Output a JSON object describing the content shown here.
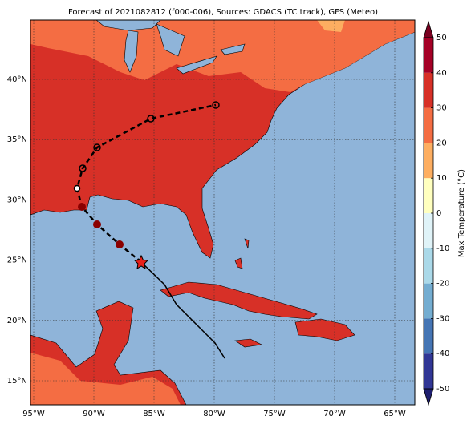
{
  "title": "Forecast of 2021082812 (f000-006), Sources: GDACS (TC track), GFS (Meteo)",
  "map": {
    "lon_labels": [
      "95°W",
      "90°W",
      "85°W",
      "80°W",
      "75°W",
      "70°W",
      "65°W"
    ],
    "lat_labels": [
      "15°N",
      "20°N",
      "25°N",
      "30°N",
      "35°N",
      "40°N"
    ]
  },
  "colorbar": {
    "label": "Max Temperature (°C)",
    "lim": [
      -50,
      50
    ],
    "ticks": [
      -50,
      -40,
      -30,
      -20,
      -10,
      0,
      10,
      20,
      30,
      40,
      50
    ],
    "colors": [
      "#313695",
      "#4575b4",
      "#74add1",
      "#abd9e9",
      "#e0f3f8",
      "#ffffbf",
      "#fdae61",
      "#f46d43",
      "#d73027",
      "#a50026"
    ],
    "under_color": "#1f1f70",
    "over_color": "#7a0020"
  }
}
